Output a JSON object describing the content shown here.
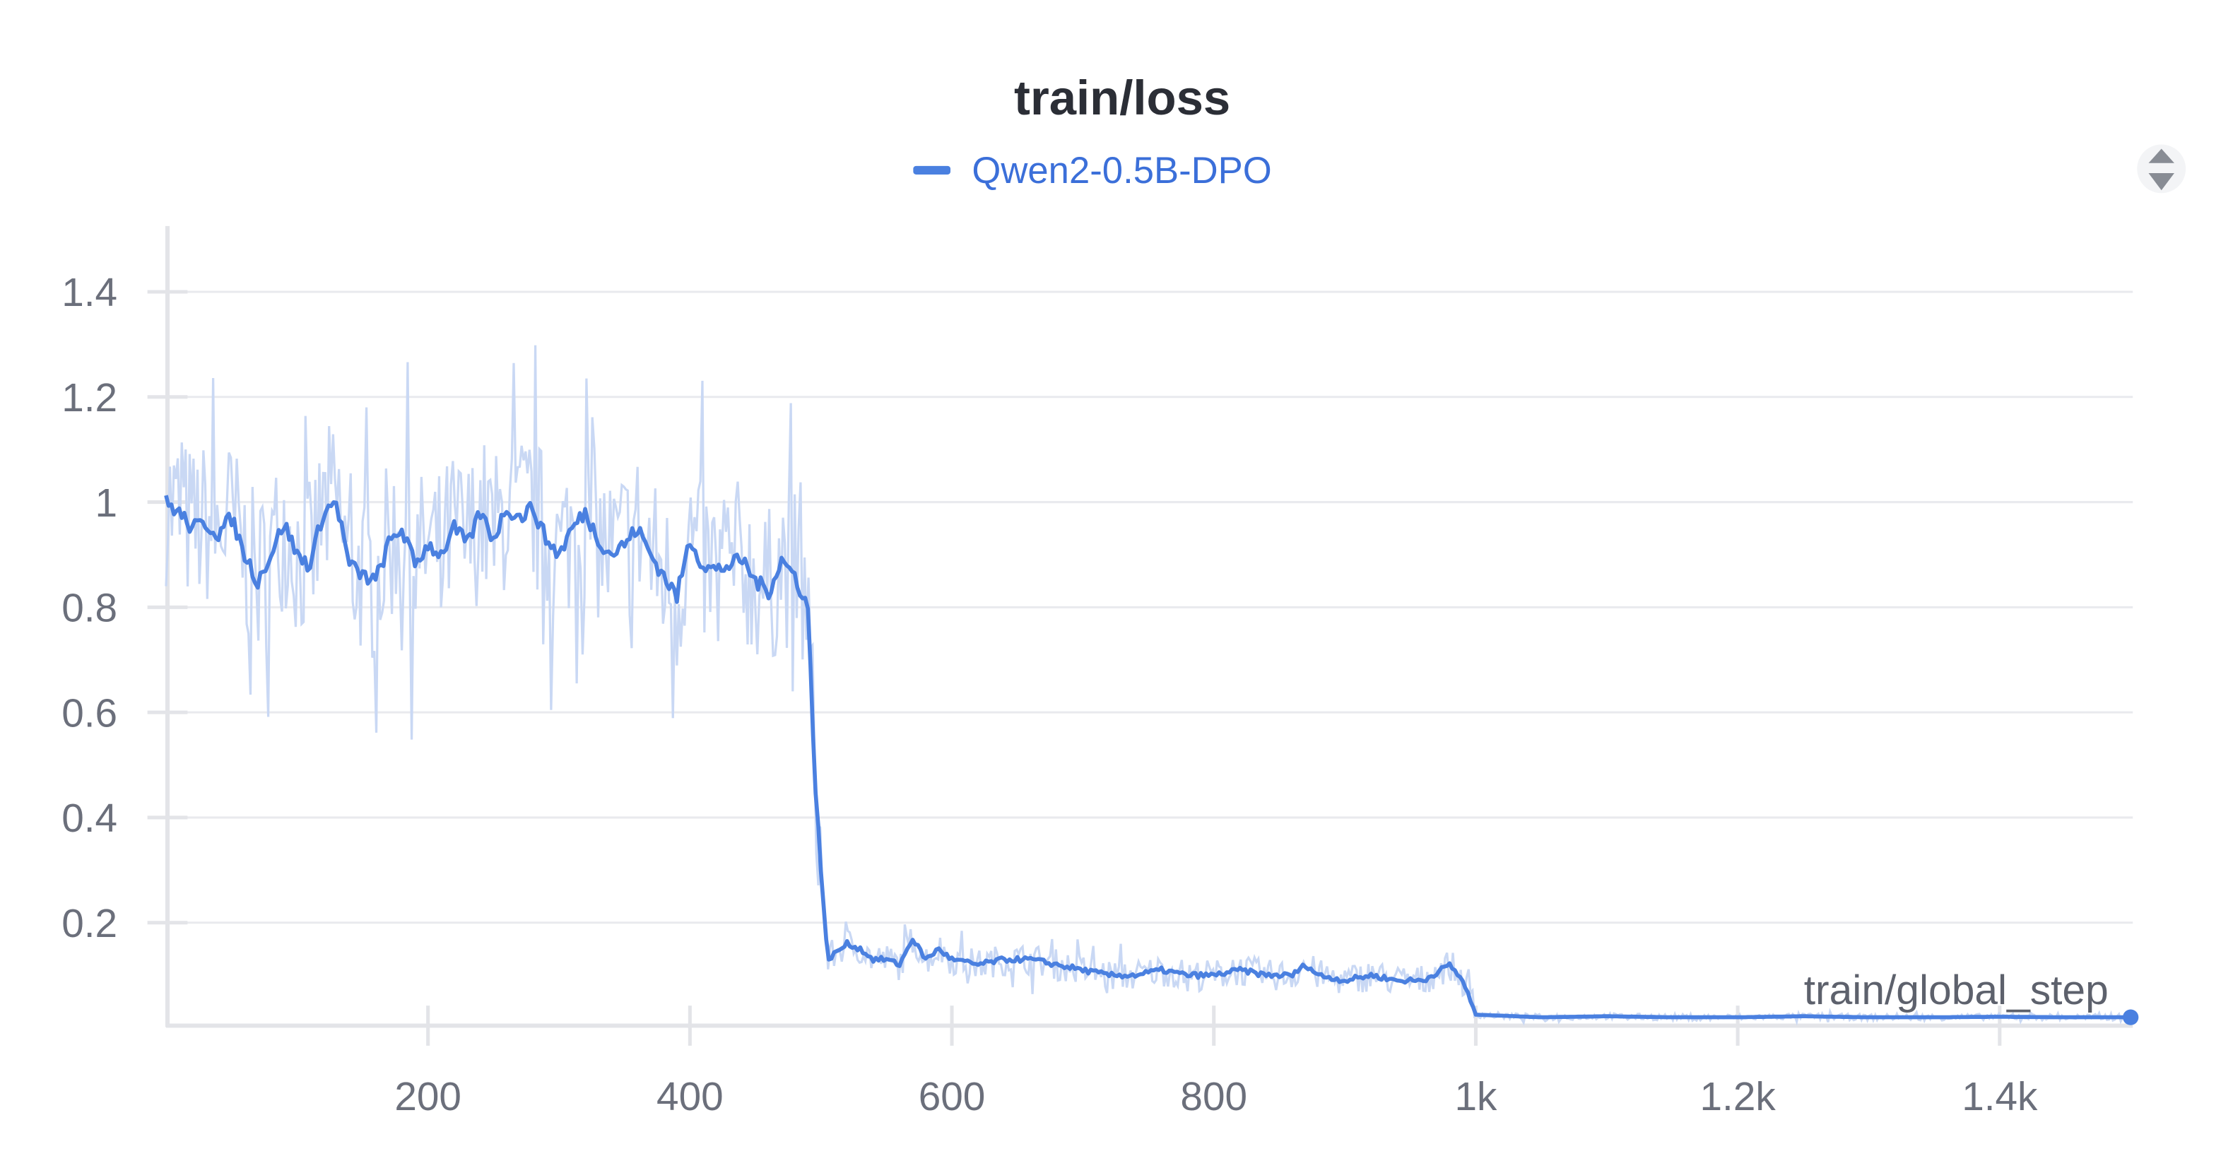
{
  "chart_data": {
    "type": "line",
    "title": "train/loss",
    "xlabel": "train/global_step",
    "ylabel": "",
    "xlim": [
      0,
      1500
    ],
    "ylim": [
      0,
      1.5
    ],
    "x_ticks": [
      200,
      400,
      600,
      800,
      1000,
      1200,
      1400
    ],
    "x_tick_labels": [
      "200",
      "400",
      "600",
      "800",
      "1k",
      "1.2k",
      "1.4k"
    ],
    "y_ticks": [
      0.2,
      0.4,
      0.6,
      0.8,
      1,
      1.2,
      1.4
    ],
    "y_tick_labels": [
      "0.2",
      "0.4",
      "0.6",
      "0.8",
      "1",
      "1.2",
      "1.4"
    ],
    "grid": true,
    "legend_position": "top-center",
    "series": [
      {
        "name": "Qwen2-0.5B-DPO",
        "color": "#4a80e0",
        "raw_color": "#c9d8f4",
        "x": [
          0,
          10,
          20,
          30,
          40,
          50,
          60,
          70,
          80,
          90,
          100,
          110,
          120,
          130,
          140,
          150,
          160,
          170,
          180,
          190,
          200,
          210,
          220,
          230,
          240,
          250,
          260,
          270,
          280,
          290,
          300,
          310,
          320,
          330,
          340,
          350,
          360,
          370,
          380,
          390,
          400,
          410,
          420,
          430,
          440,
          450,
          460,
          470,
          480,
          490,
          495,
          500,
          505,
          510,
          520,
          530,
          540,
          550,
          560,
          570,
          580,
          590,
          600,
          620,
          640,
          660,
          680,
          700,
          720,
          740,
          760,
          780,
          800,
          820,
          840,
          860,
          870,
          880,
          900,
          920,
          940,
          960,
          980,
          990,
          1000,
          1050,
          1100,
          1150,
          1200,
          1250,
          1300,
          1350,
          1400,
          1450,
          1500
        ],
        "y": [
          1.0,
          0.98,
          0.95,
          0.96,
          0.94,
          0.97,
          0.9,
          0.85,
          0.9,
          0.96,
          0.9,
          0.88,
          0.98,
          1.0,
          0.88,
          0.86,
          0.85,
          0.92,
          0.95,
          0.88,
          0.92,
          0.9,
          0.95,
          0.92,
          0.98,
          0.93,
          0.99,
          0.97,
          0.99,
          0.93,
          0.9,
          0.95,
          0.98,
          0.93,
          0.9,
          0.92,
          0.95,
          0.9,
          0.86,
          0.82,
          0.93,
          0.88,
          0.87,
          0.88,
          0.89,
          0.85,
          0.83,
          0.89,
          0.86,
          0.8,
          0.5,
          0.3,
          0.13,
          0.14,
          0.16,
          0.15,
          0.13,
          0.13,
          0.12,
          0.17,
          0.13,
          0.15,
          0.13,
          0.12,
          0.13,
          0.13,
          0.12,
          0.11,
          0.1,
          0.1,
          0.11,
          0.1,
          0.1,
          0.11,
          0.1,
          0.1,
          0.12,
          0.1,
          0.09,
          0.1,
          0.09,
          0.09,
          0.12,
          0.09,
          0.025,
          0.02,
          0.022,
          0.02,
          0.02,
          0.022,
          0.02,
          0.02,
          0.021,
          0.02,
          0.02
        ]
      }
    ]
  },
  "icons": {
    "panel_sort": "sort-arrows-icon"
  }
}
